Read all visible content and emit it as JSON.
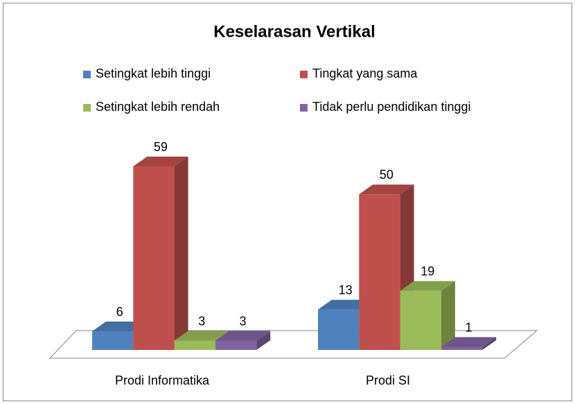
{
  "chart_data": {
    "type": "bar3d",
    "title": "Keselarasan Vertikal",
    "categories": [
      "Prodi Informatika",
      "Prodi SI"
    ],
    "series": [
      {
        "name": "Setingkat lebih tinggi",
        "color": "#4f81bd",
        "values": [
          6,
          13
        ]
      },
      {
        "name": "Tingkat yang sama",
        "color": "#c0504d",
        "values": [
          59,
          50
        ]
      },
      {
        "name": "Setingkat lebih rendah",
        "color": "#9bbb59",
        "values": [
          3,
          19
        ]
      },
      {
        "name": "Tidak perlu pendidikan tinggi",
        "color": "#8064a2",
        "values": [
          3,
          1
        ]
      }
    ]
  }
}
